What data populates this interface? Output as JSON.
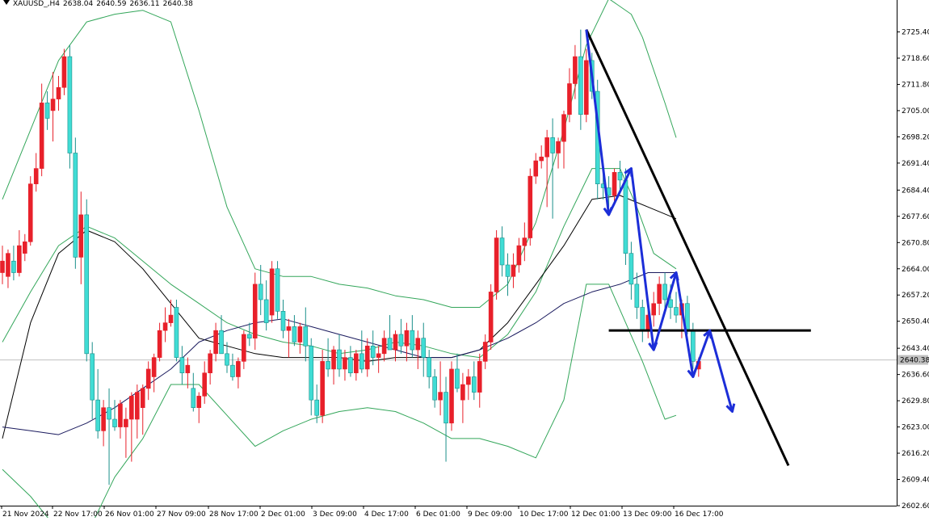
{
  "header": {
    "symbol": "XAUUSD_,H4",
    "open": "2638.04",
    "high": "2640.59",
    "low": "2636.11",
    "close": "2640.38"
  },
  "colors": {
    "bull": "#e8202a",
    "bear": "#40dcd4",
    "band": "#33a65a",
    "ma": "#000000",
    "mid": "#1a1a5e",
    "arrow": "#1c2ed8",
    "trend": "#000000",
    "price_line": "#c0c0c0"
  },
  "chart_data": {
    "type": "candlestick",
    "title": "XAUUSD_,H4",
    "ylim": [
      2602.6,
      2732.0
    ],
    "y_ticks": [
      "2725.40",
      "2718.60",
      "2711.80",
      "2705.00",
      "2698.20",
      "2691.40",
      "2684.40",
      "2677.60",
      "2670.80",
      "2664.00",
      "2657.20",
      "2650.40",
      "2643.40",
      "2636.60",
      "2629.80",
      "2623.00",
      "2616.20",
      "2609.40",
      "2602.60"
    ],
    "x_ticks": [
      "21 Nov 2024",
      "22 Nov 17:00",
      "26 Nov 01:00",
      "27 Nov 09:00",
      "28 Nov 17:00",
      "2 Dec 01:00",
      "3 Dec 09:00",
      "4 Dec 17:00",
      "6 Dec 01:00",
      "9 Dec 09:00",
      "10 Dec 17:00",
      "12 Dec 01:00",
      "13 Dec 09:00",
      "16 Dec 17:00"
    ],
    "current_price": "2640.38",
    "candles": [
      {
        "o": 2663,
        "h": 2670,
        "l": 2660,
        "c": 2666
      },
      {
        "o": 2662,
        "h": 2669,
        "l": 2659,
        "c": 2668
      },
      {
        "o": 2666,
        "h": 2670,
        "l": 2661,
        "c": 2663
      },
      {
        "o": 2663,
        "h": 2674,
        "l": 2662,
        "c": 2670
      },
      {
        "o": 2668,
        "h": 2673,
        "l": 2666,
        "c": 2671
      },
      {
        "o": 2671,
        "h": 2688,
        "l": 2670,
        "c": 2686
      },
      {
        "o": 2686,
        "h": 2694,
        "l": 2684,
        "c": 2690
      },
      {
        "o": 2690,
        "h": 2712,
        "l": 2688,
        "c": 2707
      },
      {
        "o": 2707,
        "h": 2710,
        "l": 2700,
        "c": 2703
      },
      {
        "o": 2705,
        "h": 2715,
        "l": 2697,
        "c": 2708
      },
      {
        "o": 2708,
        "h": 2714,
        "l": 2705,
        "c": 2711
      },
      {
        "o": 2711,
        "h": 2721,
        "l": 2709,
        "c": 2719
      },
      {
        "o": 2719,
        "h": 2722,
        "l": 2690,
        "c": 2694
      },
      {
        "o": 2694,
        "h": 2698,
        "l": 2664,
        "c": 2667
      },
      {
        "o": 2667,
        "h": 2684,
        "l": 2660,
        "c": 2678
      },
      {
        "o": 2678,
        "h": 2682,
        "l": 2640,
        "c": 2642
      },
      {
        "o": 2642,
        "h": 2645,
        "l": 2625,
        "c": 2630
      },
      {
        "o": 2630,
        "h": 2638,
        "l": 2620,
        "c": 2622
      },
      {
        "o": 2622,
        "h": 2630,
        "l": 2618,
        "c": 2628
      },
      {
        "o": 2628,
        "h": 2633,
        "l": 2608,
        "c": 2625
      },
      {
        "o": 2625,
        "h": 2630,
        "l": 2622,
        "c": 2623
      },
      {
        "o": 2623,
        "h": 2630,
        "l": 2620,
        "c": 2629
      },
      {
        "o": 2623,
        "h": 2628,
        "l": 2615,
        "c": 2625
      },
      {
        "o": 2625,
        "h": 2632,
        "l": 2614,
        "c": 2631
      },
      {
        "o": 2625,
        "h": 2634,
        "l": 2620,
        "c": 2632
      },
      {
        "o": 2628,
        "h": 2634,
        "l": 2621,
        "c": 2633
      },
      {
        "o": 2633,
        "h": 2640,
        "l": 2630,
        "c": 2638
      },
      {
        "o": 2636,
        "h": 2642,
        "l": 2632,
        "c": 2641
      },
      {
        "o": 2641,
        "h": 2650,
        "l": 2640,
        "c": 2648
      },
      {
        "o": 2648,
        "h": 2654,
        "l": 2645,
        "c": 2650
      },
      {
        "o": 2650,
        "h": 2656,
        "l": 2649,
        "c": 2652
      },
      {
        "o": 2654,
        "h": 2656,
        "l": 2640,
        "c": 2641
      },
      {
        "o": 2641,
        "h": 2644,
        "l": 2634,
        "c": 2637
      },
      {
        "o": 2637,
        "h": 2641,
        "l": 2633,
        "c": 2639
      },
      {
        "o": 2633,
        "h": 2637,
        "l": 2627,
        "c": 2628
      },
      {
        "o": 2628,
        "h": 2632,
        "l": 2624,
        "c": 2631
      },
      {
        "o": 2631,
        "h": 2640,
        "l": 2629,
        "c": 2637
      },
      {
        "o": 2637,
        "h": 2643,
        "l": 2634,
        "c": 2642
      },
      {
        "o": 2642,
        "h": 2650,
        "l": 2640,
        "c": 2648
      },
      {
        "o": 2648,
        "h": 2652,
        "l": 2643,
        "c": 2642
      },
      {
        "o": 2642,
        "h": 2645,
        "l": 2637,
        "c": 2639
      },
      {
        "o": 2639,
        "h": 2642,
        "l": 2635,
        "c": 2636
      },
      {
        "o": 2636,
        "h": 2641,
        "l": 2633,
        "c": 2640
      },
      {
        "o": 2640,
        "h": 2648,
        "l": 2638,
        "c": 2647
      },
      {
        "o": 2647,
        "h": 2650,
        "l": 2644,
        "c": 2646
      },
      {
        "o": 2646,
        "h": 2663,
        "l": 2643,
        "c": 2660
      },
      {
        "o": 2660,
        "h": 2665,
        "l": 2652,
        "c": 2656
      },
      {
        "o": 2656,
        "h": 2661,
        "l": 2648,
        "c": 2650
      },
      {
        "o": 2652,
        "h": 2666,
        "l": 2650,
        "c": 2664
      },
      {
        "o": 2664,
        "h": 2666,
        "l": 2651,
        "c": 2653
      },
      {
        "o": 2653,
        "h": 2656,
        "l": 2646,
        "c": 2648
      },
      {
        "o": 2648,
        "h": 2651,
        "l": 2641,
        "c": 2649
      },
      {
        "o": 2649,
        "h": 2652,
        "l": 2644,
        "c": 2645
      },
      {
        "o": 2645,
        "h": 2650,
        "l": 2642,
        "c": 2649
      },
      {
        "o": 2649,
        "h": 2654,
        "l": 2640,
        "c": 2644
      },
      {
        "o": 2644,
        "h": 2646,
        "l": 2626,
        "c": 2630
      },
      {
        "o": 2630,
        "h": 2634,
        "l": 2624,
        "c": 2626
      },
      {
        "o": 2626,
        "h": 2643,
        "l": 2624,
        "c": 2640
      },
      {
        "o": 2640,
        "h": 2646,
        "l": 2636,
        "c": 2638
      },
      {
        "o": 2638,
        "h": 2644,
        "l": 2634,
        "c": 2643
      },
      {
        "o": 2643,
        "h": 2647,
        "l": 2636,
        "c": 2638
      },
      {
        "o": 2638,
        "h": 2643,
        "l": 2635,
        "c": 2641
      },
      {
        "o": 2641,
        "h": 2644,
        "l": 2636,
        "c": 2637
      },
      {
        "o": 2637,
        "h": 2643,
        "l": 2635,
        "c": 2642
      },
      {
        "o": 2642,
        "h": 2648,
        "l": 2637,
        "c": 2638
      },
      {
        "o": 2638,
        "h": 2646,
        "l": 2636,
        "c": 2644
      },
      {
        "o": 2644,
        "h": 2648,
        "l": 2639,
        "c": 2641
      },
      {
        "o": 2641,
        "h": 2644,
        "l": 2637,
        "c": 2642
      },
      {
        "o": 2642,
        "h": 2648,
        "l": 2640,
        "c": 2646
      },
      {
        "o": 2646,
        "h": 2652,
        "l": 2644,
        "c": 2643
      },
      {
        "o": 2643,
        "h": 2648,
        "l": 2640,
        "c": 2647
      },
      {
        "o": 2647,
        "h": 2651,
        "l": 2642,
        "c": 2644
      },
      {
        "o": 2644,
        "h": 2650,
        "l": 2640,
        "c": 2648
      },
      {
        "o": 2648,
        "h": 2652,
        "l": 2641,
        "c": 2643
      },
      {
        "o": 2643,
        "h": 2648,
        "l": 2638,
        "c": 2646
      },
      {
        "o": 2646,
        "h": 2650,
        "l": 2636,
        "c": 2641
      },
      {
        "o": 2641,
        "h": 2643,
        "l": 2633,
        "c": 2636
      },
      {
        "o": 2636,
        "h": 2638,
        "l": 2628,
        "c": 2630
      },
      {
        "o": 2630,
        "h": 2640,
        "l": 2626,
        "c": 2632
      },
      {
        "o": 2632,
        "h": 2636,
        "l": 2614,
        "c": 2624
      },
      {
        "o": 2624,
        "h": 2640,
        "l": 2622,
        "c": 2638
      },
      {
        "o": 2638,
        "h": 2642,
        "l": 2632,
        "c": 2633
      },
      {
        "o": 2630,
        "h": 2637,
        "l": 2624,
        "c": 2634
      },
      {
        "o": 2634,
        "h": 2638,
        "l": 2630,
        "c": 2636
      },
      {
        "o": 2636,
        "h": 2640,
        "l": 2630,
        "c": 2632
      },
      {
        "o": 2632,
        "h": 2642,
        "l": 2628,
        "c": 2640
      },
      {
        "o": 2640,
        "h": 2647,
        "l": 2638,
        "c": 2645
      },
      {
        "o": 2645,
        "h": 2660,
        "l": 2643,
        "c": 2658
      },
      {
        "o": 2658,
        "h": 2674,
        "l": 2656,
        "c": 2672
      },
      {
        "o": 2672,
        "h": 2675,
        "l": 2662,
        "c": 2665
      },
      {
        "o": 2665,
        "h": 2668,
        "l": 2657,
        "c": 2662
      },
      {
        "o": 2662,
        "h": 2668,
        "l": 2659,
        "c": 2665
      },
      {
        "o": 2665,
        "h": 2672,
        "l": 2663,
        "c": 2670
      },
      {
        "o": 2670,
        "h": 2676,
        "l": 2666,
        "c": 2672
      },
      {
        "o": 2672,
        "h": 2690,
        "l": 2670,
        "c": 2688
      },
      {
        "o": 2688,
        "h": 2694,
        "l": 2686,
        "c": 2692
      },
      {
        "o": 2692,
        "h": 2696,
        "l": 2690,
        "c": 2693
      },
      {
        "o": 2693,
        "h": 2700,
        "l": 2680,
        "c": 2698
      },
      {
        "o": 2698,
        "h": 2703,
        "l": 2677,
        "c": 2694
      },
      {
        "o": 2694,
        "h": 2698,
        "l": 2690,
        "c": 2697
      },
      {
        "o": 2697,
        "h": 2705,
        "l": 2690,
        "c": 2704
      },
      {
        "o": 2704,
        "h": 2716,
        "l": 2702,
        "c": 2712
      },
      {
        "o": 2712,
        "h": 2722,
        "l": 2708,
        "c": 2719
      },
      {
        "o": 2719,
        "h": 2726,
        "l": 2700,
        "c": 2704
      },
      {
        "o": 2704,
        "h": 2721,
        "l": 2702,
        "c": 2718
      },
      {
        "o": 2718,
        "h": 2720,
        "l": 2708,
        "c": 2710
      },
      {
        "o": 2710,
        "h": 2713,
        "l": 2682,
        "c": 2686
      },
      {
        "o": 2686,
        "h": 2690,
        "l": 2682,
        "c": 2685
      },
      {
        "o": 2685,
        "h": 2688,
        "l": 2680,
        "c": 2683
      },
      {
        "o": 2683,
        "h": 2690,
        "l": 2681,
        "c": 2689
      },
      {
        "o": 2689,
        "h": 2692,
        "l": 2684,
        "c": 2687
      },
      {
        "o": 2687,
        "h": 2690,
        "l": 2665,
        "c": 2668
      },
      {
        "o": 2668,
        "h": 2671,
        "l": 2656,
        "c": 2660
      },
      {
        "o": 2660,
        "h": 2663,
        "l": 2651,
        "c": 2654
      },
      {
        "o": 2654,
        "h": 2656,
        "l": 2645,
        "c": 2648
      },
      {
        "o": 2648,
        "h": 2654,
        "l": 2646,
        "c": 2652
      },
      {
        "o": 2652,
        "h": 2658,
        "l": 2649,
        "c": 2655
      },
      {
        "o": 2655,
        "h": 2662,
        "l": 2652,
        "c": 2660
      },
      {
        "o": 2660,
        "h": 2663,
        "l": 2653,
        "c": 2656
      },
      {
        "o": 2656,
        "h": 2660,
        "l": 2651,
        "c": 2654
      },
      {
        "o": 2654,
        "h": 2658,
        "l": 2650,
        "c": 2652
      },
      {
        "o": 2652,
        "h": 2656,
        "l": 2646,
        "c": 2655
      },
      {
        "o": 2655,
        "h": 2657,
        "l": 2647,
        "c": 2648
      },
      {
        "o": 2648,
        "h": 2650,
        "l": 2638,
        "c": 2640
      },
      {
        "o": 2638,
        "h": 2641,
        "l": 2636,
        "c": 2640
      }
    ],
    "bollinger_upper": [
      [
        0,
        2682
      ],
      [
        5,
        2700
      ],
      [
        10,
        2718
      ],
      [
        15,
        2728
      ],
      [
        20,
        2730
      ],
      [
        25,
        2731
      ],
      [
        30,
        2728
      ],
      [
        35,
        2705
      ],
      [
        40,
        2680
      ],
      [
        45,
        2664
      ],
      [
        50,
        2662
      ],
      [
        55,
        2662
      ],
      [
        60,
        2660
      ],
      [
        65,
        2659
      ],
      [
        70,
        2657
      ],
      [
        75,
        2656
      ],
      [
        80,
        2654
      ],
      [
        85,
        2654
      ],
      [
        90,
        2660
      ],
      [
        95,
        2676
      ],
      [
        100,
        2700
      ],
      [
        104,
        2722
      ],
      [
        108,
        2734
      ],
      [
        112,
        2730
      ],
      [
        114,
        2724
      ],
      [
        118,
        2707
      ],
      [
        120,
        2698
      ]
    ],
    "bollinger_middle": [
      [
        0,
        2645
      ],
      [
        5,
        2658
      ],
      [
        10,
        2670
      ],
      [
        15,
        2675
      ],
      [
        20,
        2672
      ],
      [
        25,
        2666
      ],
      [
        30,
        2660
      ],
      [
        35,
        2655
      ],
      [
        40,
        2650
      ],
      [
        45,
        2647
      ],
      [
        50,
        2645
      ],
      [
        55,
        2644
      ],
      [
        60,
        2642
      ],
      [
        65,
        2643
      ],
      [
        70,
        2645
      ],
      [
        75,
        2644
      ],
      [
        80,
        2642
      ],
      [
        85,
        2641
      ],
      [
        90,
        2647
      ],
      [
        95,
        2658
      ],
      [
        100,
        2675
      ],
      [
        105,
        2690
      ],
      [
        110,
        2690
      ],
      [
        113,
        2680
      ],
      [
        116,
        2668
      ],
      [
        120,
        2664
      ]
    ],
    "bollinger_lower": [
      [
        0,
        2612
      ],
      [
        5,
        2605
      ],
      [
        10,
        2596
      ],
      [
        15,
        2595
      ],
      [
        20,
        2610
      ],
      [
        25,
        2620
      ],
      [
        30,
        2634
      ],
      [
        35,
        2634
      ],
      [
        40,
        2626
      ],
      [
        45,
        2618
      ],
      [
        50,
        2622
      ],
      [
        55,
        2625
      ],
      [
        60,
        2627
      ],
      [
        65,
        2628
      ],
      [
        70,
        2627
      ],
      [
        75,
        2624
      ],
      [
        80,
        2620
      ],
      [
        85,
        2620
      ],
      [
        90,
        2618
      ],
      [
        95,
        2615
      ],
      [
        100,
        2630
      ],
      [
        104,
        2660
      ],
      [
        108,
        2660
      ],
      [
        111,
        2650
      ],
      [
        114,
        2640
      ],
      [
        118,
        2625
      ],
      [
        120,
        2626
      ]
    ],
    "ma_black": [
      [
        0,
        2620
      ],
      [
        5,
        2650
      ],
      [
        10,
        2668
      ],
      [
        15,
        2674
      ],
      [
        20,
        2671
      ],
      [
        25,
        2664
      ],
      [
        30,
        2655
      ],
      [
        35,
        2646
      ],
      [
        40,
        2644
      ],
      [
        45,
        2642
      ],
      [
        50,
        2641
      ],
      [
        55,
        2641
      ],
      [
        60,
        2641
      ],
      [
        65,
        2640
      ],
      [
        70,
        2641
      ],
      [
        75,
        2641
      ],
      [
        80,
        2641
      ],
      [
        85,
        2643
      ],
      [
        90,
        2650
      ],
      [
        95,
        2660
      ],
      [
        100,
        2670
      ],
      [
        105,
        2682
      ],
      [
        110,
        2683
      ],
      [
        115,
        2680
      ],
      [
        120,
        2677
      ]
    ],
    "ma_navy": [
      [
        0,
        2623
      ],
      [
        5,
        2622
      ],
      [
        10,
        2621
      ],
      [
        15,
        2624
      ],
      [
        20,
        2628
      ],
      [
        25,
        2633
      ],
      [
        30,
        2638
      ],
      [
        35,
        2645
      ],
      [
        40,
        2648
      ],
      [
        45,
        2650
      ],
      [
        50,
        2651
      ],
      [
        55,
        2649
      ],
      [
        60,
        2647
      ],
      [
        65,
        2645
      ],
      [
        70,
        2643
      ],
      [
        75,
        2641
      ],
      [
        80,
        2641
      ],
      [
        85,
        2643
      ],
      [
        90,
        2646
      ],
      [
        95,
        2650
      ],
      [
        100,
        2655
      ],
      [
        105,
        2658
      ],
      [
        110,
        2660
      ],
      [
        115,
        2663
      ],
      [
        120,
        2663
      ]
    ],
    "trendline": [
      [
        104,
        2726
      ],
      [
        140,
        2613
      ]
    ],
    "support_line": [
      [
        108,
        2648
      ],
      [
        144,
        2648
      ]
    ],
    "blue_path": [
      [
        104,
        2726
      ],
      [
        108,
        2678
      ],
      [
        112,
        2690
      ],
      [
        116,
        2643
      ],
      [
        120,
        2663
      ],
      [
        123,
        2636
      ],
      [
        126,
        2648
      ],
      [
        130,
        2627
      ]
    ]
  }
}
